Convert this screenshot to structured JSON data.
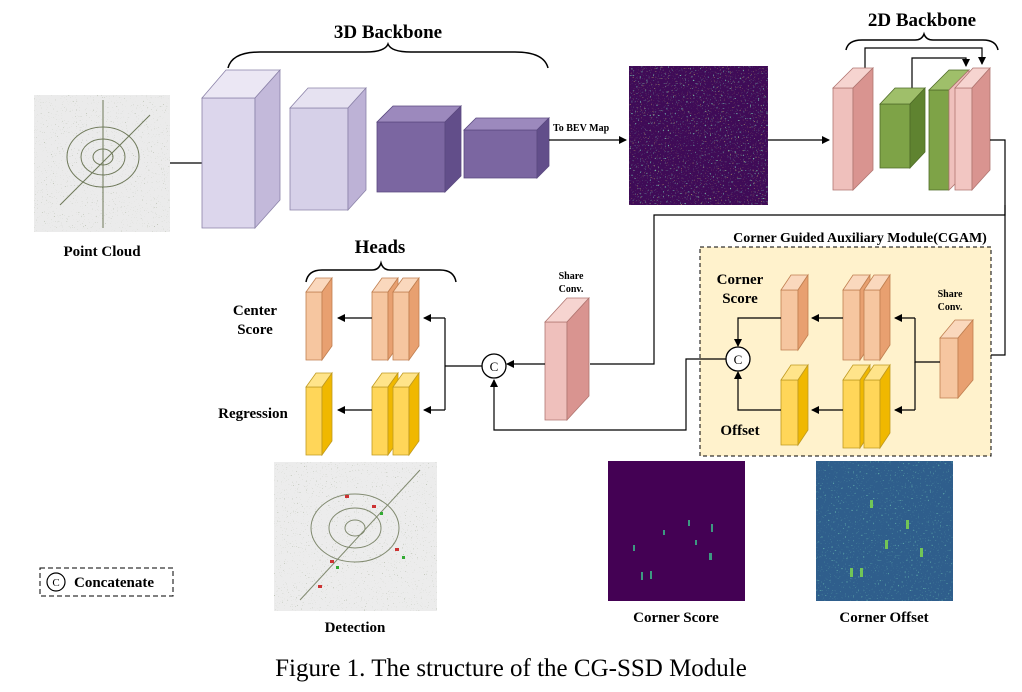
{
  "labels": {
    "backbone_3d": "3D Backbone",
    "backbone_2d": "2D Backbone",
    "to_bev": "To BEV Map",
    "point_cloud": "Point Cloud",
    "heads": "Heads",
    "center_score_line1": "Center",
    "center_score_line2": "Score",
    "regression": "Regression",
    "share_conv_line1": "Share",
    "share_conv_line2": "Conv.",
    "cgam_title": "Corner Guided Auxiliary Module(CGAM)",
    "corner_score_line1": "Corner",
    "corner_score_line2": "Score",
    "offset": "Offset",
    "cgam_share_line1": "Share",
    "cgam_share_line2": "Conv.",
    "detection": "Detection",
    "corner_score_map": "Corner Score",
    "corner_offset_map": "Corner Offset",
    "concat_symbol": "C",
    "concat_legend": "Concatenate"
  },
  "caption": "Figure 1. The structure of the CG-SSD Module",
  "colors": {
    "backbone3d_light": "#d9d3ea",
    "backbone3d_dark": "#7a649e",
    "pink_block": "#e8a4a0",
    "green_block": "#7fa24a",
    "orange_block": "#f4b183",
    "yellow_block": "#ffcc33",
    "cgam_bg": "#fff2cc",
    "viridis_dark": "#440154",
    "viridis_mid": "#21918c",
    "viridis_bright": "#fde725"
  }
}
